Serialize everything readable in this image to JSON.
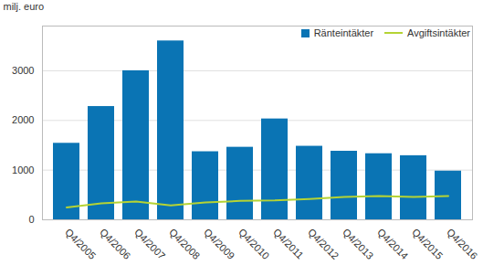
{
  "chart_data": {
    "type": "bar",
    "y_label": "milj. euro",
    "categories": [
      "Q4/2005",
      "Q4/2006",
      "Q4/2007",
      "Q4/2008",
      "Q4/2009",
      "Q4/2010",
      "Q4/2011",
      "Q4/2012",
      "Q4/2013",
      "Q4/2014",
      "Q4/2015",
      "Q4/2016"
    ],
    "series": [
      {
        "name": "Ränteintäkter",
        "type": "bar",
        "color": "#0a74b4",
        "values": [
          1540,
          2280,
          3000,
          3600,
          1370,
          1460,
          2030,
          1480,
          1380,
          1330,
          1290,
          980
        ]
      },
      {
        "name": "Avgiftsintäkter",
        "type": "line",
        "color": "#b5d334",
        "values": [
          250,
          330,
          370,
          290,
          350,
          380,
          390,
          420,
          460,
          480,
          460,
          480
        ]
      }
    ],
    "ylim": [
      0,
      3900
    ],
    "yticks": [
      0,
      1000,
      2000,
      3000
    ],
    "grid": true,
    "legend": "top-right"
  }
}
